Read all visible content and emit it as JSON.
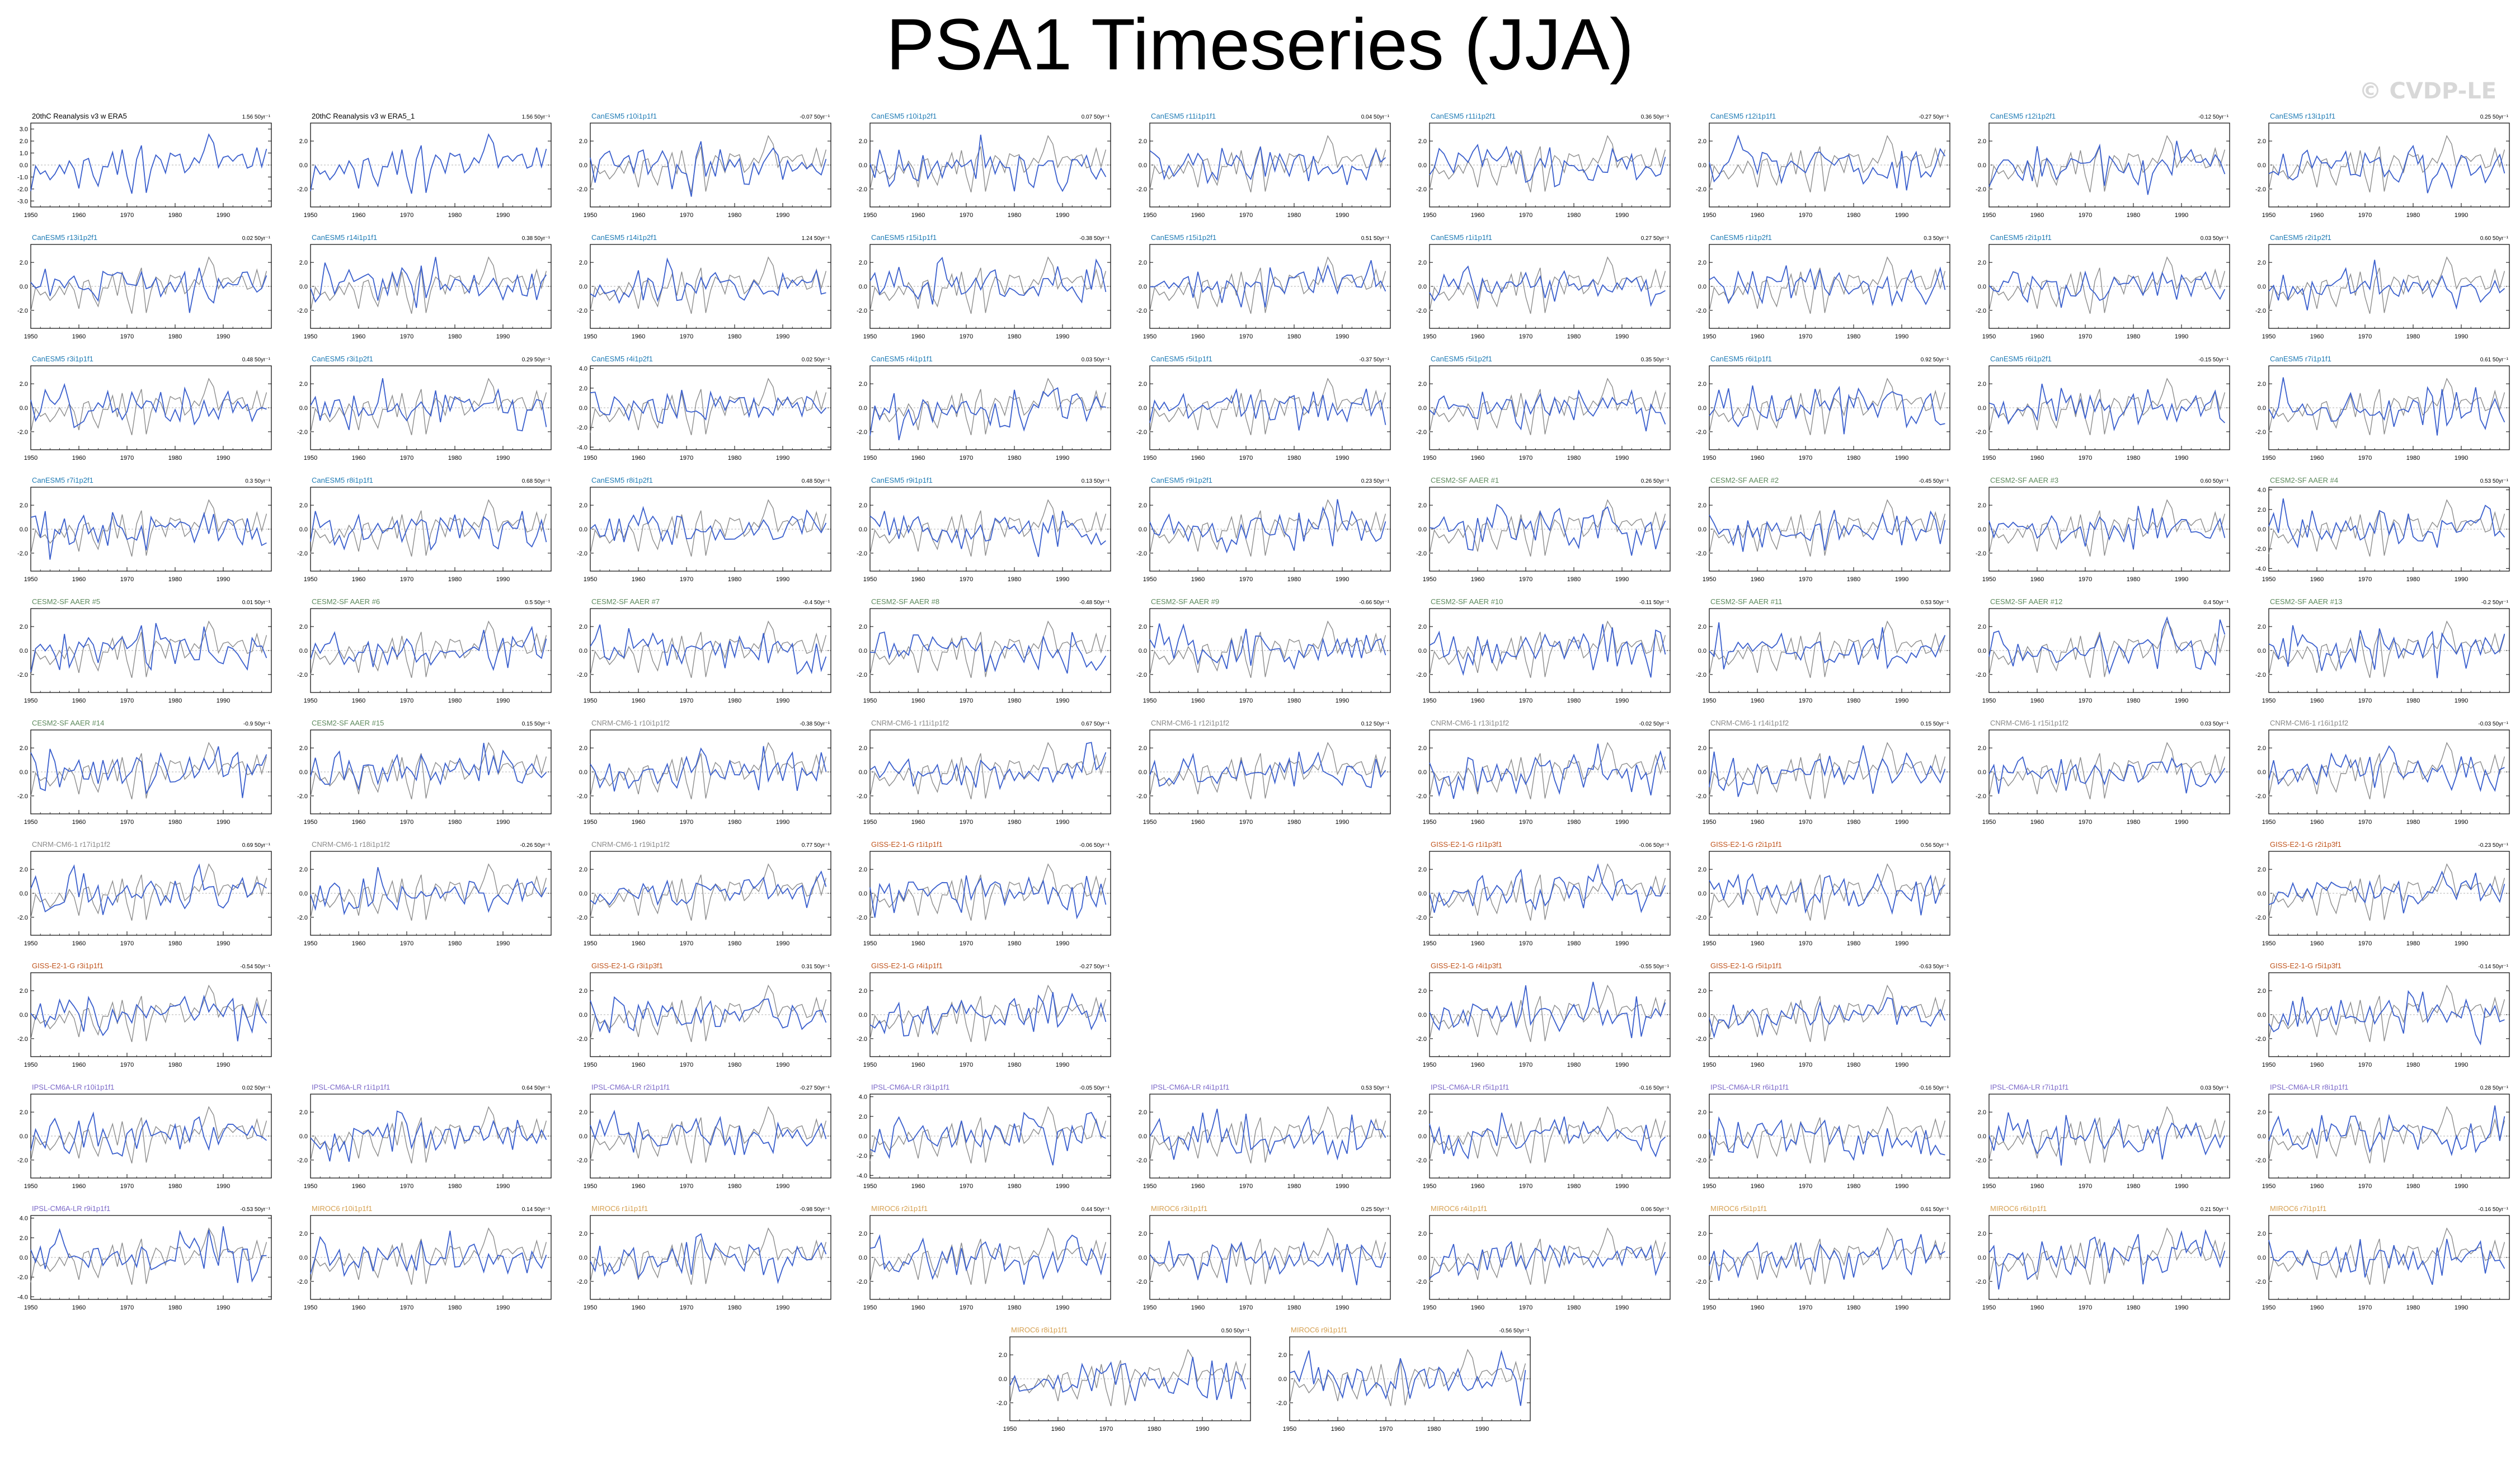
{
  "page": {
    "title": "PSA1 Timeseries (JJA)",
    "watermark": "© CVDP-LE"
  },
  "colors": {
    "model_line": "#3a5fcd",
    "reference_line": "#8c8c8c",
    "zero_line": "#b0b0b0",
    "ensembles": {
      "reference": "#000000",
      "CanESM5": "#1f7bb5",
      "CESM2-SF AAER": "#5d8a5d",
      "CNRM-CM6-1": "#8a8a8a",
      "GISS-E2-1-G": "#c0551e",
      "IPSL-CM6A-LR": "#7b68c8",
      "MIROC6": "#d6a050"
    }
  },
  "chart_data": {
    "type": "line",
    "x_range": [
      1950,
      2000
    ],
    "x_ticks": [
      "1950",
      "1960",
      "1970",
      "1980",
      "1990"
    ],
    "y_ticks_default": [
      "2.0",
      "0.0",
      "-2.0"
    ],
    "y_ticks_wide": [
      "4.0",
      "2.0",
      "0.0",
      "-2.0",
      "-4.0"
    ],
    "y_ticks_fine": [
      "3.0",
      "2.0",
      "1.0",
      "0.0",
      "-1.0",
      "-2.0",
      "-3.0"
    ],
    "ylim_default": [
      -3.5,
      3.5
    ],
    "panels": [
      {
        "label": "20thC Reanalysis v3 w ERA5",
        "trend": "1.56 50yr⁻¹",
        "group": "reference",
        "row": 0,
        "col": 0,
        "yticks": "fine",
        "noref": true
      },
      {
        "label": "20thC Reanalysis v3 w ERA5_1",
        "trend": "1.56 50yr⁻¹",
        "group": "reference",
        "row": 0,
        "col": 1,
        "noref": true
      },
      {
        "label": "CanESM5 r10i1p1f1",
        "trend": "-0.07 50yr⁻¹",
        "group": "CanESM5",
        "row": 0,
        "col": 2
      },
      {
        "label": "CanESM5 r10i1p2f1",
        "trend": "0.07 50yr⁻¹",
        "group": "CanESM5",
        "row": 0,
        "col": 3
      },
      {
        "label": "CanESM5 r11i1p1f1",
        "trend": "0.04 50yr⁻¹",
        "group": "CanESM5",
        "row": 0,
        "col": 4
      },
      {
        "label": "CanESM5 r11i1p2f1",
        "trend": "0.36 50yr⁻¹",
        "group": "CanESM5",
        "row": 0,
        "col": 5
      },
      {
        "label": "CanESM5 r12i1p1f1",
        "trend": "-0.27 50yr⁻¹",
        "group": "CanESM5",
        "row": 0,
        "col": 6
      },
      {
        "label": "CanESM5 r12i1p2f1",
        "trend": "-0.12 50yr⁻¹",
        "group": "CanESM5",
        "row": 0,
        "col": 7
      },
      {
        "label": "CanESM5 r13i1p1f1",
        "trend": "0.25 50yr⁻¹",
        "group": "CanESM5",
        "row": 0,
        "col": 8
      },
      {
        "label": "CanESM5 r13i1p2f1",
        "trend": "0.02 50yr⁻¹",
        "group": "CanESM5",
        "row": 1,
        "col": 0
      },
      {
        "label": "CanESM5 r14i1p1f1",
        "trend": "0.38 50yr⁻¹",
        "group": "CanESM5",
        "row": 1,
        "col": 1
      },
      {
        "label": "CanESM5 r14i1p2f1",
        "trend": "1.24 50yr⁻¹",
        "group": "CanESM5",
        "row": 1,
        "col": 2
      },
      {
        "label": "CanESM5 r15i1p1f1",
        "trend": "-0.38 50yr⁻¹",
        "group": "CanESM5",
        "row": 1,
        "col": 3
      },
      {
        "label": "CanESM5 r15i1p2f1",
        "trend": "0.51 50yr⁻¹",
        "group": "CanESM5",
        "row": 1,
        "col": 4
      },
      {
        "label": "CanESM5 r1i1p1f1",
        "trend": "0.27 50yr⁻¹",
        "group": "CanESM5",
        "row": 1,
        "col": 5
      },
      {
        "label": "CanESM5 r1i1p2f1",
        "trend": "0.3 50yr⁻¹",
        "group": "CanESM5",
        "row": 1,
        "col": 6
      },
      {
        "label": "CanESM5 r2i1p1f1",
        "trend": "0.03 50yr⁻¹",
        "group": "CanESM5",
        "row": 1,
        "col": 7
      },
      {
        "label": "CanESM5 r2i1p2f1",
        "trend": "0.60 50yr⁻¹",
        "group": "CanESM5",
        "row": 1,
        "col": 8
      },
      {
        "label": "CanESM5 r3i1p1f1",
        "trend": "0.48 50yr⁻¹",
        "group": "CanESM5",
        "row": 2,
        "col": 0
      },
      {
        "label": "CanESM5 r3i1p2f1",
        "trend": "0.29 50yr⁻¹",
        "group": "CanESM5",
        "row": 2,
        "col": 1
      },
      {
        "label": "CanESM5 r4i1p2f1",
        "trend": "0.02 50yr⁻¹",
        "group": "CanESM5",
        "row": 2,
        "col": 2,
        "yticks": "wide"
      },
      {
        "label": "CanESM5 r4i1p1f1",
        "trend": "0.03 50yr⁻¹",
        "group": "CanESM5",
        "row": 2,
        "col": 3
      },
      {
        "label": "CanESM5 r5i1p1f1",
        "trend": "-0.37 50yr⁻¹",
        "group": "CanESM5",
        "row": 2,
        "col": 4
      },
      {
        "label": "CanESM5 r5i1p2f1",
        "trend": "0.35 50yr⁻¹",
        "group": "CanESM5",
        "row": 2,
        "col": 5
      },
      {
        "label": "CanESM5 r6i1p1f1",
        "trend": "0.92 50yr⁻¹",
        "group": "CanESM5",
        "row": 2,
        "col": 6
      },
      {
        "label": "CanESM5 r6i1p2f1",
        "trend": "-0.15 50yr⁻¹",
        "group": "CanESM5",
        "row": 2,
        "col": 7
      },
      {
        "label": "CanESM5 r7i1p1f1",
        "trend": "0.61 50yr⁻¹",
        "group": "CanESM5",
        "row": 2,
        "col": 8
      },
      {
        "label": "CanESM5 r7i1p2f1",
        "trend": "0.3 50yr⁻¹",
        "group": "CanESM5",
        "row": 3,
        "col": 0
      },
      {
        "label": "CanESM5 r8i1p1f1",
        "trend": "0.68 50yr⁻¹",
        "group": "CanESM5",
        "row": 3,
        "col": 1
      },
      {
        "label": "CanESM5 r8i1p2f1",
        "trend": "0.48 50yr⁻¹",
        "group": "CanESM5",
        "row": 3,
        "col": 2
      },
      {
        "label": "CanESM5 r9i1p1f1",
        "trend": "0.13 50yr⁻¹",
        "group": "CanESM5",
        "row": 3,
        "col": 3
      },
      {
        "label": "CanESM5 r9i1p2f1",
        "trend": "0.23 50yr⁻¹",
        "group": "CanESM5",
        "row": 3,
        "col": 4
      },
      {
        "label": "CESM2-SF AAER #1",
        "trend": "0.26 50yr⁻¹",
        "group": "CESM2-SF AAER",
        "row": 3,
        "col": 5
      },
      {
        "label": "CESM2-SF AAER #2",
        "trend": "-0.45 50yr⁻¹",
        "group": "CESM2-SF AAER",
        "row": 3,
        "col": 6
      },
      {
        "label": "CESM2-SF AAER #3",
        "trend": "0.60 50yr⁻¹",
        "group": "CESM2-SF AAER",
        "row": 3,
        "col": 7
      },
      {
        "label": "CESM2-SF AAER #4",
        "trend": "0.53 50yr⁻¹",
        "group": "CESM2-SF AAER",
        "row": 3,
        "col": 8,
        "yticks": "wide"
      },
      {
        "label": "CESM2-SF AAER #5",
        "trend": "0.01 50yr⁻¹",
        "group": "CESM2-SF AAER",
        "row": 4,
        "col": 0
      },
      {
        "label": "CESM2-SF AAER #6",
        "trend": "0.5 50yr⁻¹",
        "group": "CESM2-SF AAER",
        "row": 4,
        "col": 1
      },
      {
        "label": "CESM2-SF AAER #7",
        "trend": "-0.4 50yr⁻¹",
        "group": "CESM2-SF AAER",
        "row": 4,
        "col": 2
      },
      {
        "label": "CESM2-SF AAER #8",
        "trend": "-0.48 50yr⁻¹",
        "group": "CESM2-SF AAER",
        "row": 4,
        "col": 3
      },
      {
        "label": "CESM2-SF AAER #9",
        "trend": "-0.66 50yr⁻¹",
        "group": "CESM2-SF AAER",
        "row": 4,
        "col": 4
      },
      {
        "label": "CESM2-SF AAER #10",
        "trend": "-0.11 50yr⁻¹",
        "group": "CESM2-SF AAER",
        "row": 4,
        "col": 5
      },
      {
        "label": "CESM2-SF AAER #11",
        "trend": "0.53 50yr⁻¹",
        "group": "CESM2-SF AAER",
        "row": 4,
        "col": 6
      },
      {
        "label": "CESM2-SF AAER #12",
        "trend": "0.4 50yr⁻¹",
        "group": "CESM2-SF AAER",
        "row": 4,
        "col": 7
      },
      {
        "label": "CESM2-SF AAER #13",
        "trend": "-0.2 50yr⁻¹",
        "group": "CESM2-SF AAER",
        "row": 4,
        "col": 8
      },
      {
        "label": "CESM2-SF AAER #14",
        "trend": "-0.9 50yr⁻¹",
        "group": "CESM2-SF AAER",
        "row": 5,
        "col": 0
      },
      {
        "label": "CESM2-SF AAER #15",
        "trend": "0.15 50yr⁻¹",
        "group": "CESM2-SF AAER",
        "row": 5,
        "col": 1
      },
      {
        "label": "CNRM-CM6-1 r10i1p1f2",
        "trend": "-0.38 50yr⁻¹",
        "group": "CNRM-CM6-1",
        "row": 5,
        "col": 2
      },
      {
        "label": "CNRM-CM6-1 r11i1p1f2",
        "trend": "0.67 50yr⁻¹",
        "group": "CNRM-CM6-1",
        "row": 5,
        "col": 3
      },
      {
        "label": "CNRM-CM6-1 r12i1p1f2",
        "trend": "0.12 50yr⁻¹",
        "group": "CNRM-CM6-1",
        "row": 5,
        "col": 4
      },
      {
        "label": "CNRM-CM6-1 r13i1p1f2",
        "trend": "-0.02 50yr⁻¹",
        "group": "CNRM-CM6-1",
        "row": 5,
        "col": 5
      },
      {
        "label": "CNRM-CM6-1 r14i1p1f2",
        "trend": "0.15 50yr⁻¹",
        "group": "CNRM-CM6-1",
        "row": 5,
        "col": 6
      },
      {
        "label": "CNRM-CM6-1 r15i1p1f2",
        "trend": "0.03 50yr⁻¹",
        "group": "CNRM-CM6-1",
        "row": 5,
        "col": 7
      },
      {
        "label": "CNRM-CM6-1 r16i1p1f2",
        "trend": "-0.03 50yr⁻¹",
        "group": "CNRM-CM6-1",
        "row": 5,
        "col": 8
      },
      {
        "label": "CNRM-CM6-1 r17i1p1f2",
        "trend": "0.69 50yr⁻¹",
        "group": "CNRM-CM6-1",
        "row": 6,
        "col": 0
      },
      {
        "label": "CNRM-CM6-1 r18i1p1f2",
        "trend": "-0.26 50yr⁻¹",
        "group": "CNRM-CM6-1",
        "row": 6,
        "col": 1
      },
      {
        "label": "CNRM-CM6-1 r19i1p1f2",
        "trend": "0.77 50yr⁻¹",
        "group": "CNRM-CM6-1",
        "row": 6,
        "col": 2
      },
      {
        "label": "GISS-E2-1-G r1i1p1f1",
        "trend": "-0.06 50yr⁻¹",
        "group": "GISS-E2-1-G",
        "row": 6,
        "col": 3
      },
      {
        "label": "GISS-E2-1-G r1i1p3f1",
        "trend": "-0.06 50yr⁻¹",
        "group": "GISS-E2-1-G",
        "row": 6,
        "col": 5
      },
      {
        "label": "GISS-E2-1-G r2i1p1f1",
        "trend": "0.56 50yr⁻¹",
        "group": "GISS-E2-1-G",
        "row": 6,
        "col": 6
      },
      {
        "label": "GISS-E2-1-G r2i1p3f1",
        "trend": "-0.23 50yr⁻¹",
        "group": "GISS-E2-1-G",
        "row": 6,
        "col": 8
      },
      {
        "label": "GISS-E2-1-G r3i1p1f1",
        "trend": "-0.54 50yr⁻¹",
        "group": "GISS-E2-1-G",
        "row": 7,
        "col": 0
      },
      {
        "label": "GISS-E2-1-G r3i1p3f1",
        "trend": "0.31 50yr⁻¹",
        "group": "GISS-E2-1-G",
        "row": 7,
        "col": 2
      },
      {
        "label": "GISS-E2-1-G r4i1p1f1",
        "trend": "-0.27 50yr⁻¹",
        "group": "GISS-E2-1-G",
        "row": 7,
        "col": 3
      },
      {
        "label": "GISS-E2-1-G r4i1p3f1",
        "trend": "-0.55 50yr⁻¹",
        "group": "GISS-E2-1-G",
        "row": 7,
        "col": 5
      },
      {
        "label": "GISS-E2-1-G r5i1p1f1",
        "trend": "-0.63 50yr⁻¹",
        "group": "GISS-E2-1-G",
        "row": 7,
        "col": 6
      },
      {
        "label": "GISS-E2-1-G r5i1p3f1",
        "trend": "-0.14 50yr⁻¹",
        "group": "GISS-E2-1-G",
        "row": 7,
        "col": 8
      },
      {
        "label": "IPSL-CM6A-LR r10i1p1f1",
        "trend": "0.02 50yr⁻¹",
        "group": "IPSL-CM6A-LR",
        "row": 8,
        "col": 0
      },
      {
        "label": "IPSL-CM6A-LR r1i1p1f1",
        "trend": "0.64 50yr⁻¹",
        "group": "IPSL-CM6A-LR",
        "row": 8,
        "col": 1
      },
      {
        "label": "IPSL-CM6A-LR r2i1p1f1",
        "trend": "-0.27 50yr⁻¹",
        "group": "IPSL-CM6A-LR",
        "row": 8,
        "col": 2
      },
      {
        "label": "IPSL-CM6A-LR r3i1p1f1",
        "trend": "-0.05 50yr⁻¹",
        "group": "IPSL-CM6A-LR",
        "row": 8,
        "col": 3,
        "yticks": "wide"
      },
      {
        "label": "IPSL-CM6A-LR r4i1p1f1",
        "trend": "0.53 50yr⁻¹",
        "group": "IPSL-CM6A-LR",
        "row": 8,
        "col": 4
      },
      {
        "label": "IPSL-CM6A-LR r5i1p1f1",
        "trend": "-0.16 50yr⁻¹",
        "group": "IPSL-CM6A-LR",
        "row": 8,
        "col": 5
      },
      {
        "label": "IPSL-CM6A-LR r6i1p1f1",
        "trend": "-0.16 50yr⁻¹",
        "group": "IPSL-CM6A-LR",
        "row": 8,
        "col": 6
      },
      {
        "label": "IPSL-CM6A-LR r7i1p1f1",
        "trend": "0.03 50yr⁻¹",
        "group": "IPSL-CM6A-LR",
        "row": 8,
        "col": 7
      },
      {
        "label": "IPSL-CM6A-LR r8i1p1f1",
        "trend": "0.28 50yr⁻¹",
        "group": "IPSL-CM6A-LR",
        "row": 8,
        "col": 8
      },
      {
        "label": "IPSL-CM6A-LR r9i1p1f1",
        "trend": "-0.53 50yr⁻¹",
        "group": "IPSL-CM6A-LR",
        "row": 9,
        "col": 0,
        "yticks": "wide"
      },
      {
        "label": "MIROC6 r10i1p1f1",
        "trend": "0.14 50yr⁻¹",
        "group": "MIROC6",
        "row": 9,
        "col": 1
      },
      {
        "label": "MIROC6 r1i1p1f1",
        "trend": "-0.98 50yr⁻¹",
        "group": "MIROC6",
        "row": 9,
        "col": 2
      },
      {
        "label": "MIROC6 r2i1p1f1",
        "trend": "0.44 50yr⁻¹",
        "group": "MIROC6",
        "row": 9,
        "col": 3
      },
      {
        "label": "MIROC6 r3i1p1f1",
        "trend": "0.25 50yr⁻¹",
        "group": "MIROC6",
        "row": 9,
        "col": 4
      },
      {
        "label": "MIROC6 r4i1p1f1",
        "trend": "0.06 50yr⁻¹",
        "group": "MIROC6",
        "row": 9,
        "col": 5
      },
      {
        "label": "MIROC6 r5i1p1f1",
        "trend": "0.61 50yr⁻¹",
        "group": "MIROC6",
        "row": 9,
        "col": 6
      },
      {
        "label": "MIROC6 r6i1p1f1",
        "trend": "0.21 50yr⁻¹",
        "group": "MIROC6",
        "row": 9,
        "col": 7
      },
      {
        "label": "MIROC6 r7i1p1f1",
        "trend": "-0.16 50yr⁻¹",
        "group": "MIROC6",
        "row": 9,
        "col": 8
      },
      {
        "label": "MIROC6 r8i1p1f1",
        "trend": "0.50 50yr⁻¹",
        "group": "MIROC6",
        "row": 10,
        "col": "a"
      },
      {
        "label": "MIROC6 r9i1p1f1",
        "trend": "-0.56 50yr⁻¹",
        "group": "MIROC6",
        "row": 10,
        "col": "b"
      }
    ]
  }
}
